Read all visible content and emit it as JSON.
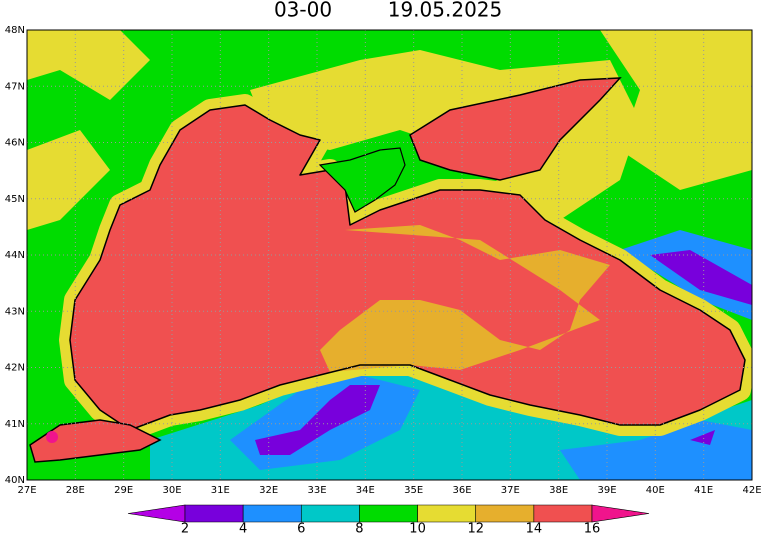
{
  "header": {
    "time": "03-00",
    "date": "19.05.2025"
  },
  "axes": {
    "lat_labels": [
      "48N",
      "47N",
      "46N",
      "45N",
      "44N",
      "43N",
      "42N",
      "41N",
      "40N"
    ],
    "lon_labels": [
      "27E",
      "28E",
      "29E",
      "30E",
      "31E",
      "32E",
      "33E",
      "34E",
      "35E",
      "36E",
      "37E",
      "38E",
      "39E",
      "40E",
      "41E",
      "42E"
    ]
  },
  "colorbar": {
    "ticks": [
      2,
      4,
      6,
      8,
      10,
      12,
      14,
      16
    ],
    "colors": [
      "#b400e6",
      "#7800dc",
      "#1e90ff",
      "#00c8c8",
      "#00dc00",
      "#e6dc32",
      "#e6af2d",
      "#f05050",
      "#f0148c"
    ]
  }
}
